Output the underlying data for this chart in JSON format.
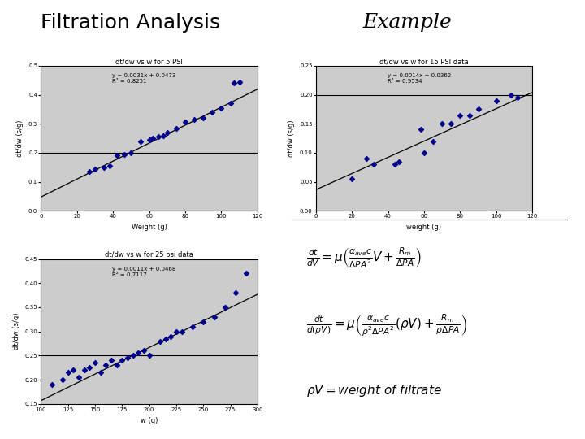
{
  "title_left": "Filtration Analysis",
  "title_right": "Example",
  "bg_color": "#cccccc",
  "plot1": {
    "title": "dt/dw vs w for 5 PSI",
    "xlabel": "Weight (g)",
    "ylabel": "dt/dw (s/g)",
    "eq": "y = 0.0031x + 0.0473",
    "r2": "R² = 0.8251",
    "slope": 0.0031,
    "intercept": 0.0473,
    "xmin": 0,
    "xmax": 120,
    "ymin": 0,
    "ymax": 0.5,
    "hline": 0.2,
    "x_data": [
      27,
      30,
      35,
      38,
      42,
      46,
      50,
      55,
      60,
      62,
      65,
      68,
      70,
      75,
      80,
      85,
      90,
      95,
      100,
      105,
      107,
      110
    ],
    "y_data": [
      0.135,
      0.145,
      0.15,
      0.155,
      0.19,
      0.195,
      0.2,
      0.24,
      0.245,
      0.25,
      0.255,
      0.26,
      0.27,
      0.285,
      0.305,
      0.315,
      0.32,
      0.34,
      0.355,
      0.37,
      0.44,
      0.445
    ]
  },
  "plot2": {
    "title": "dt/dw vs w for 15 PSI data",
    "xlabel": "weight (g)",
    "ylabel": "dt/dw (s/g)",
    "eq": "y = 0.0014x + 0.0362",
    "r2": "R² = 0.9534",
    "slope": 0.0014,
    "intercept": 0.0362,
    "xmin": 0,
    "xmax": 120,
    "ymin": 0,
    "ymax": 0.25,
    "hline": 0.2,
    "x_data": [
      20,
      28,
      32,
      44,
      46,
      58,
      60,
      65,
      70,
      75,
      80,
      85,
      90,
      100,
      108,
      112
    ],
    "y_data": [
      0.055,
      0.09,
      0.08,
      0.08,
      0.085,
      0.14,
      0.1,
      0.12,
      0.15,
      0.15,
      0.165,
      0.165,
      0.175,
      0.19,
      0.2,
      0.195
    ]
  },
  "plot3": {
    "title": "dt/dw vs w for 25 psi data",
    "xlabel": "w (g)",
    "ylabel": "dt/dw (s/g)",
    "eq": "y = 0.0011x + 0.0468",
    "r2": "R² = 0.7117",
    "slope": 0.0011,
    "intercept": 0.0468,
    "xmin": 100,
    "xmax": 300,
    "ymin": 0.15,
    "ymax": 0.45,
    "hline": 0.25,
    "x_data": [
      110,
      120,
      125,
      130,
      135,
      140,
      145,
      150,
      155,
      160,
      165,
      170,
      175,
      180,
      185,
      190,
      195,
      200,
      210,
      215,
      220,
      225,
      230,
      240,
      250,
      260,
      270,
      280,
      290
    ],
    "y_data": [
      0.19,
      0.2,
      0.215,
      0.22,
      0.205,
      0.22,
      0.225,
      0.235,
      0.215,
      0.23,
      0.24,
      0.23,
      0.24,
      0.245,
      0.25,
      0.255,
      0.26,
      0.25,
      0.28,
      0.285,
      0.29,
      0.3,
      0.3,
      0.31,
      0.32,
      0.33,
      0.35,
      0.38,
      0.42
    ]
  },
  "dot_color": "#00008B",
  "line_color": "black",
  "marker": "D",
  "marker_size": 3,
  "title_fontsize": 18,
  "plot_title_fontsize": 6,
  "axis_label_fontsize": 6,
  "tick_fontsize": 5,
  "eq_fontsize": 5
}
